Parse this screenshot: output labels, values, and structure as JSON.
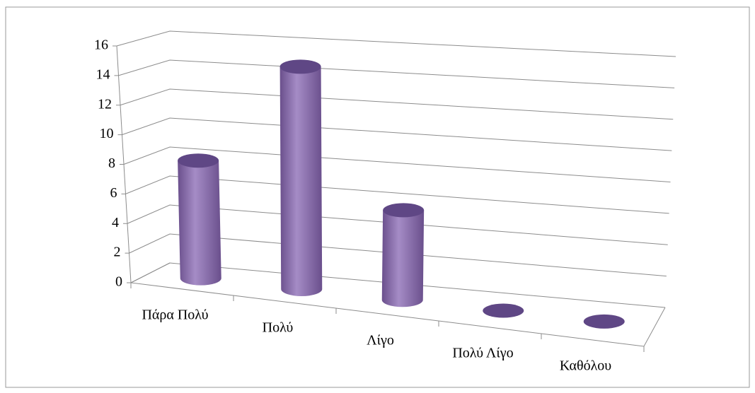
{
  "chart_data": {
    "type": "bar3d",
    "categories": [
      "Πάρα Πολύ",
      "Πολύ",
      "Λίγο",
      "Πολύ Λίγο",
      "Καθόλου"
    ],
    "values": [
      8,
      15,
      6,
      0,
      0
    ],
    "color": "#8064a2",
    "ylim": [
      0,
      16
    ],
    "yticks": [
      0,
      2,
      4,
      6,
      8,
      10,
      12,
      14,
      16
    ],
    "grid": true
  }
}
